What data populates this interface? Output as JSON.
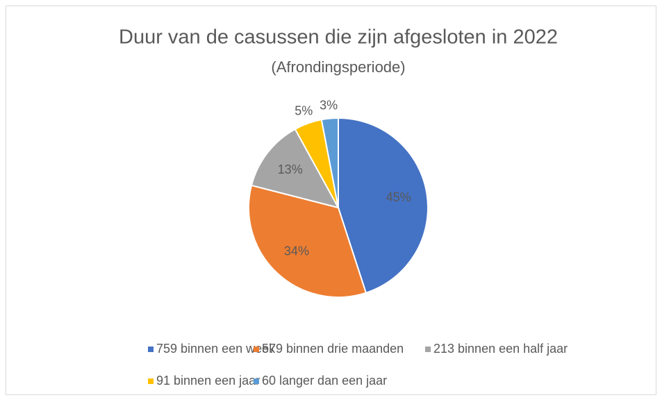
{
  "chart_data": {
    "type": "pie",
    "title": "Duur van de casussen die zijn afgesloten in 2022",
    "subtitle": "(Afrondingsperiode)",
    "categories": [
      "759 binnen een week",
      "579 binnen drie maanden",
      "213 binnen een half jaar",
      "91 binnen een jaar",
      "60 langer dan een jaar"
    ],
    "values": [
      45,
      34,
      13,
      5,
      3
    ],
    "value_labels": [
      "45%",
      "34%",
      "13%",
      "5%",
      "3%"
    ],
    "colors": [
      "#4472c4",
      "#ed7d31",
      "#a5a5a5",
      "#ffc000",
      "#5b9bd5"
    ],
    "legend": "bottom"
  }
}
